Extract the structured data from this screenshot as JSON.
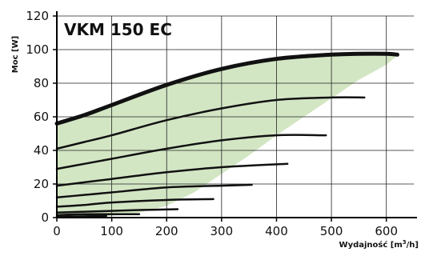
{
  "chart_data": {
    "type": "line",
    "title": "VKM 150 EC",
    "xlabel_text": "Wydajność [m",
    "xlabel_sup": "3",
    "xlabel_end": "/h]",
    "ylabel": "Moc [W]",
    "xlim": [
      0,
      650
    ],
    "ylim": [
      0,
      120
    ],
    "x_ticks": [
      0,
      100,
      200,
      300,
      400,
      500,
      600
    ],
    "y_ticks": [
      0,
      20,
      40,
      60,
      80,
      100,
      120
    ],
    "grid": true,
    "operating_area_color": "#d3e6c4",
    "line_color": "#111111",
    "operating_area": [
      [
        0,
        0
      ],
      [
        0,
        56
      ],
      [
        50,
        62
      ],
      [
        100,
        68
      ],
      [
        200,
        80
      ],
      [
        300,
        89
      ],
      [
        400,
        95
      ],
      [
        500,
        97.5
      ],
      [
        600,
        97.5
      ],
      [
        620,
        96.5
      ],
      [
        600,
        91
      ],
      [
        550,
        82
      ],
      [
        500,
        71
      ],
      [
        450,
        60
      ],
      [
        400,
        49
      ],
      [
        350,
        37
      ],
      [
        300,
        26
      ],
      [
        250,
        15
      ],
      [
        200,
        7
      ],
      [
        150,
        3
      ],
      [
        100,
        1
      ],
      [
        0,
        0
      ]
    ],
    "series": [
      {
        "x": [
          0,
          50,
          100,
          200,
          300,
          400,
          500,
          550,
          600,
          620
        ],
        "y": [
          56,
          61,
          67,
          79,
          88.5,
          94.5,
          97,
          97.5,
          97.5,
          97
        ],
        "max": true
      },
      {
        "x": [
          0,
          50,
          100,
          200,
          300,
          400,
          500,
          560
        ],
        "y": [
          41,
          45,
          49,
          58,
          65,
          70,
          71.5,
          71.5
        ]
      },
      {
        "x": [
          0,
          50,
          100,
          200,
          300,
          400,
          490
        ],
        "y": [
          29,
          32,
          35,
          41,
          46,
          49,
          49
        ]
      },
      {
        "x": [
          0,
          50,
          100,
          200,
          300,
          420
        ],
        "y": [
          19,
          21,
          23,
          27,
          30,
          32
        ]
      },
      {
        "x": [
          0,
          50,
          100,
          200,
          300,
          355
        ],
        "y": [
          12,
          13.5,
          15,
          18,
          19,
          19.5
        ]
      },
      {
        "x": [
          0,
          50,
          100,
          200,
          285
        ],
        "y": [
          6.5,
          7.5,
          9,
          10.5,
          11
        ]
      },
      {
        "x": [
          0,
          50,
          100,
          150,
          220
        ],
        "y": [
          3,
          3.5,
          4,
          4.5,
          5
        ]
      },
      {
        "x": [
          0,
          50,
          100,
          150
        ],
        "y": [
          1.5,
          2,
          2,
          2
        ]
      },
      {
        "x": [
          0,
          50,
          90
        ],
        "y": [
          0.5,
          0.8,
          1
        ]
      }
    ]
  }
}
